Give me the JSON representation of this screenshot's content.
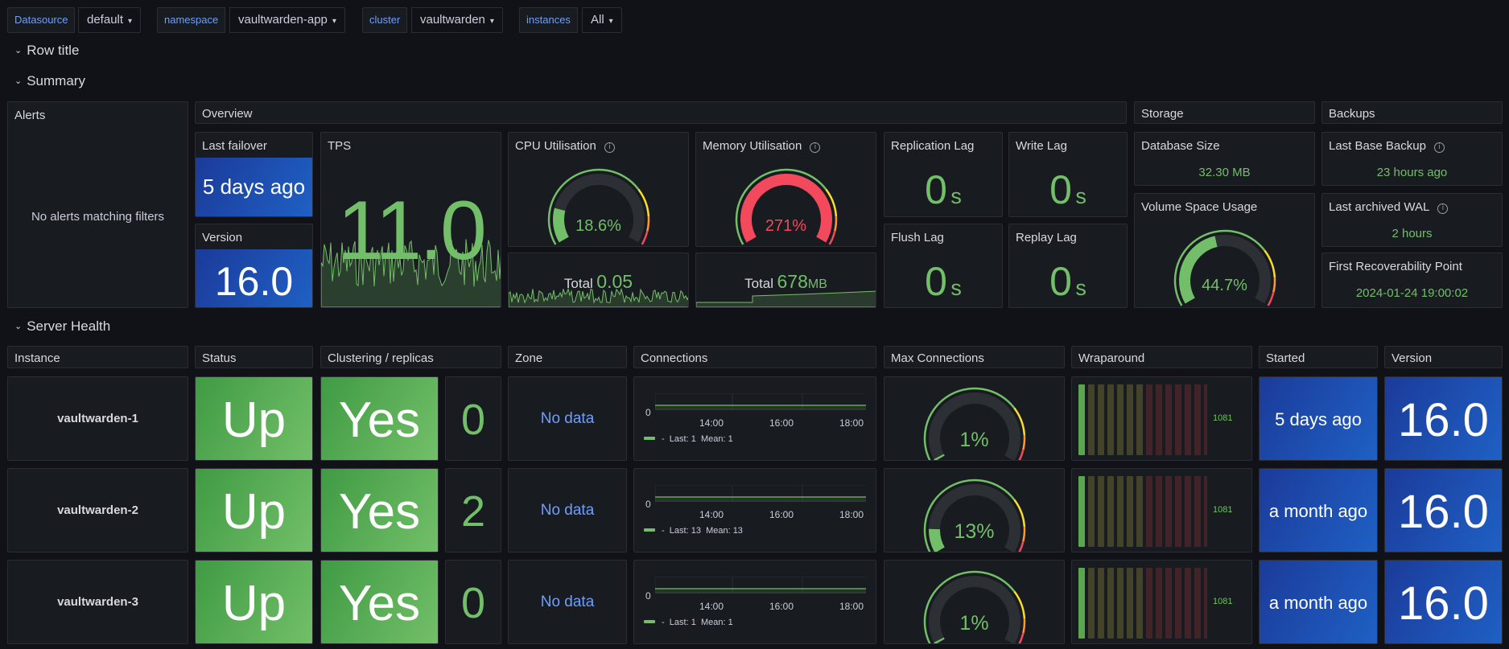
{
  "variables": [
    {
      "label": "Datasource",
      "value": "default"
    },
    {
      "label": "namespace",
      "value": "vaultwarden-app"
    },
    {
      "label": "cluster",
      "value": "vaultwarden"
    },
    {
      "label": "instances",
      "value": "All"
    }
  ],
  "rows": {
    "row1": "Row title",
    "summary": "Summary",
    "server_health": "Server Health"
  },
  "summary": {
    "alerts": {
      "title": "Alerts",
      "empty": "No alerts matching filters"
    },
    "overview": {
      "title": "Overview"
    },
    "storage": {
      "title": "Storage"
    },
    "backups": {
      "title": "Backups"
    },
    "last_failover": {
      "title": "Last failover",
      "value": "5 days ago"
    },
    "version": {
      "title": "Version",
      "value": "16.0"
    },
    "tps": {
      "title": "TPS",
      "value": "11.0"
    },
    "cpu": {
      "title": "CPU Utilisation",
      "value": "18.6%",
      "percent": 18.6,
      "total_label": "Total",
      "total_value": "0.05"
    },
    "memory": {
      "title": "Memory Utilisation",
      "value": "271%",
      "percent": 271,
      "total_label": "Total",
      "total_value": "678",
      "total_unit": "MB"
    },
    "replication_lag": {
      "title": "Replication Lag",
      "value": "0",
      "unit": "s"
    },
    "write_lag": {
      "title": "Write Lag",
      "value": "0",
      "unit": "s"
    },
    "flush_lag": {
      "title": "Flush Lag",
      "value": "0",
      "unit": "s"
    },
    "replay_lag": {
      "title": "Replay Lag",
      "value": "0",
      "unit": "s"
    },
    "database_size": {
      "title": "Database Size",
      "value": "32.30 MB"
    },
    "volume_space": {
      "title": "Volume Space Usage",
      "value": "44.7%",
      "percent": 44.7
    },
    "last_base_backup": {
      "title": "Last Base Backup",
      "value": "23 hours ago"
    },
    "last_archived_wal": {
      "title": "Last archived WAL",
      "value": "2 hours"
    },
    "first_recoverability": {
      "title": "First Recoverability Point",
      "value": "2024-01-24 19:00:02"
    }
  },
  "server_health": {
    "headers": {
      "instance": "Instance",
      "status": "Status",
      "clustering": "Clustering / replicas",
      "zone": "Zone",
      "connections": "Connections",
      "max_connections": "Max Connections",
      "wraparound": "Wraparound",
      "started": "Started",
      "version": "Version"
    },
    "axis": {
      "y": "0",
      "x": [
        "14:00",
        "16:00",
        "18:00"
      ]
    },
    "rows": [
      {
        "instance": "vaultwarden-1",
        "status": "Up",
        "clustering": "Yes",
        "replicas": "0",
        "zone": "No data",
        "legend_series": "-",
        "legend_last": "Last: 1",
        "legend_mean": "Mean: 1",
        "max_conn": "1%",
        "max_conn_pct": 1,
        "wraparound": "1081",
        "started": "5 days ago",
        "version": "16.0"
      },
      {
        "instance": "vaultwarden-2",
        "status": "Up",
        "clustering": "Yes",
        "replicas": "2",
        "zone": "No data",
        "legend_series": "-",
        "legend_last": "Last: 13",
        "legend_mean": "Mean: 13",
        "max_conn": "13%",
        "max_conn_pct": 13,
        "wraparound": "1081",
        "started": "a month ago",
        "version": "16.0"
      },
      {
        "instance": "vaultwarden-3",
        "status": "Up",
        "clustering": "Yes",
        "replicas": "0",
        "zone": "No data",
        "legend_series": "-",
        "legend_last": "Last: 1",
        "legend_mean": "Mean: 1",
        "max_conn": "1%",
        "max_conn_pct": 1,
        "wraparound": "1081",
        "started": "a month ago",
        "version": "16.0"
      }
    ]
  },
  "colors": {
    "ok": "#73bf69",
    "warn": "#fade2a",
    "orange": "#ff9830",
    "critical": "#f2495c",
    "blue": "#1f60c4",
    "track": "#2c3035"
  }
}
